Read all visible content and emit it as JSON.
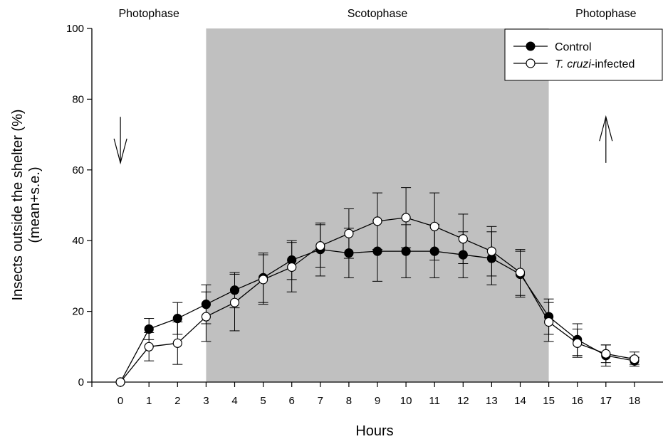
{
  "chart_data": {
    "type": "line",
    "xlabel": "Hours",
    "ylabel_line1": "Insects outside the shelter (%)",
    "ylabel_line2": "(mean+s.e.)",
    "xlim": [
      -1,
      19
    ],
    "ylim": [
      0,
      100
    ],
    "x_ticks": [
      0,
      1,
      2,
      3,
      4,
      5,
      6,
      7,
      8,
      9,
      10,
      11,
      12,
      13,
      14,
      15,
      16,
      17,
      18
    ],
    "y_ticks": [
      0,
      20,
      40,
      60,
      80,
      100
    ],
    "x": [
      0,
      1,
      2,
      3,
      4,
      5,
      6,
      7,
      8,
      9,
      10,
      11,
      12,
      13,
      14,
      15,
      16,
      17,
      18
    ],
    "phases": [
      {
        "label": "Photophase",
        "x_start": -1,
        "x_end": 3,
        "shaded": false
      },
      {
        "label": "Scotophase",
        "x_start": 3,
        "x_end": 15,
        "shaded": true,
        "color": "#c0c0c0"
      },
      {
        "label": "Photophase",
        "x_start": 15,
        "x_end": 19,
        "shaded": false
      }
    ],
    "annotations": [
      {
        "type": "arrow-down",
        "x": 0,
        "y_top": 75,
        "y_bottom": 62
      },
      {
        "type": "arrow-up",
        "x": 17,
        "y_top": 75,
        "y_bottom": 62
      }
    ],
    "legend_position": "top-right",
    "series": [
      {
        "name": "Control",
        "marker": "filled-circle",
        "color": "#000000",
        "values": [
          0,
          15.0,
          18.0,
          22.0,
          26.0,
          29.5,
          34.5,
          37.5,
          36.5,
          37.0,
          37.0,
          37.0,
          36.0,
          35.0,
          30.5,
          18.5,
          12.0,
          7.5,
          6.0
        ],
        "errors": [
          0,
          3.0,
          4.5,
          5.5,
          5.0,
          7.0,
          5.5,
          7.5,
          7.0,
          8.5,
          7.5,
          7.5,
          6.5,
          7.5,
          6.5,
          5.0,
          4.5,
          3.0,
          1.0
        ]
      },
      {
        "name_italic": "T. cruzi",
        "name_suffix": "-infected",
        "marker": "open-circle",
        "color": "#000000",
        "values": [
          0,
          10.0,
          11.0,
          18.5,
          22.5,
          29.0,
          32.5,
          38.5,
          42.0,
          45.5,
          46.5,
          44.0,
          40.5,
          37.0,
          31.0,
          17.0,
          11.0,
          8.0,
          6.5
        ],
        "errors": [
          0,
          4.0,
          6.0,
          7.0,
          8.0,
          7.0,
          7.0,
          6.0,
          7.0,
          8.0,
          8.5,
          9.5,
          7.0,
          7.0,
          6.5,
          5.5,
          4.0,
          2.5,
          2.0
        ]
      }
    ]
  }
}
